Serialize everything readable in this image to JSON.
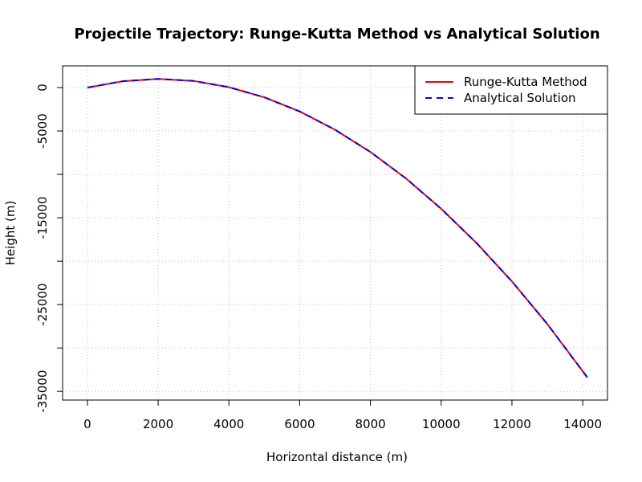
{
  "chart_data": {
    "type": "line",
    "title": "Projectile Trajectory: Runge-Kutta Method vs Analytical Solution",
    "xlabel": "Horizontal distance (m)",
    "ylabel": "Height (m)",
    "xlim": [
      -700,
      14700
    ],
    "ylim": [
      -36000,
      2500
    ],
    "x_ticks": [
      0,
      2000,
      4000,
      6000,
      8000,
      10000,
      12000,
      14000
    ],
    "x_tick_labels": [
      "0",
      "2000",
      "4000",
      "6000",
      "8000",
      "10000",
      "12000",
      "14000"
    ],
    "y_ticks": [
      0,
      -5000,
      -10000,
      -15000,
      -20000,
      -25000,
      -30000,
      -35000
    ],
    "y_tick_labels": [
      "0",
      "-5000",
      "",
      "-15000",
      "",
      "-25000",
      "",
      "-35000"
    ],
    "grid": true,
    "legend_position": "top-right",
    "series": [
      {
        "name": "Runge-Kutta Method",
        "color": "#ff0000",
        "style": "solid",
        "x": [
          0,
          1000,
          2000,
          3000,
          4000,
          5000,
          6000,
          7000,
          8000,
          9000,
          10000,
          11000,
          12000,
          13000,
          14130
        ],
        "y": [
          0,
          735,
          1000,
          770,
          50,
          -1120,
          -2750,
          -4860,
          -7420,
          -10460,
          -13960,
          -17920,
          -22340,
          -27240,
          -33400
        ]
      },
      {
        "name": "Analytical Solution",
        "color": "#0000ff",
        "style": "dashed",
        "x": [
          0,
          1000,
          2000,
          3000,
          4000,
          5000,
          6000,
          7000,
          8000,
          9000,
          10000,
          11000,
          12000,
          13000,
          14130
        ],
        "y": [
          0,
          735,
          1000,
          770,
          50,
          -1120,
          -2750,
          -4860,
          -7420,
          -10460,
          -13960,
          -17920,
          -22340,
          -27240,
          -33400
        ]
      }
    ]
  }
}
